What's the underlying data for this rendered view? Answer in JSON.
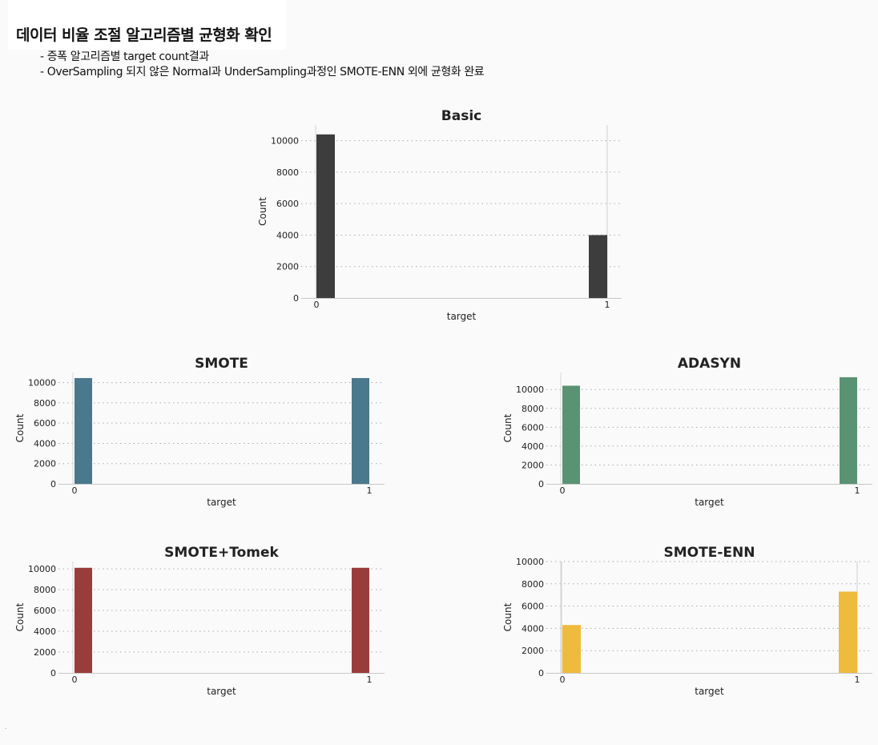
{
  "header": {
    "title": "데이터 비율 조절 알고리즘별 균형화 확인",
    "lines": [
      "- 증폭 알고리즘별 target count결과",
      "- OverSampling 되지 않은 Normal과 UnderSampling과정인 SMOTE-ENN 외에 균형화 완료"
    ]
  },
  "chart_data": [
    {
      "type": "bar",
      "title": "Basic",
      "xlabel": "target",
      "ylabel": "Count",
      "categories": [
        "0",
        "1"
      ],
      "values": [
        10400,
        4000
      ],
      "yticks": [
        0,
        2000,
        4000,
        6000,
        8000,
        10000
      ],
      "ylim": [
        0,
        11000
      ],
      "color": "#3d3d3d",
      "grid": true
    },
    {
      "type": "bar",
      "title": "SMOTE",
      "xlabel": "target",
      "ylabel": "Count",
      "categories": [
        "0",
        "1"
      ],
      "values": [
        10450,
        10450
      ],
      "yticks": [
        0,
        2000,
        4000,
        6000,
        8000,
        10000
      ],
      "ylim": [
        0,
        11000
      ],
      "color": "#4a788c",
      "grid": true
    },
    {
      "type": "bar",
      "title": "ADASYN",
      "xlabel": "target",
      "ylabel": "Count",
      "categories": [
        "0",
        "1"
      ],
      "values": [
        10400,
        11300
      ],
      "yticks": [
        0,
        2000,
        4000,
        6000,
        8000,
        10000
      ],
      "ylim": [
        0,
        11800
      ],
      "color": "#5a9373",
      "grid": true
    },
    {
      "type": "bar",
      "title": "SMOTE+Tomek",
      "xlabel": "target",
      "ylabel": "Count",
      "categories": [
        "0",
        "1"
      ],
      "values": [
        10100,
        10100
      ],
      "yticks": [
        0,
        2000,
        4000,
        6000,
        8000,
        10000
      ],
      "ylim": [
        0,
        10700
      ],
      "color": "#9b3c3c",
      "grid": true
    },
    {
      "type": "bar",
      "title": "SMOTE-ENN",
      "xlabel": "target",
      "ylabel": "Count",
      "categories": [
        "0",
        "1"
      ],
      "values": [
        4300,
        7300
      ],
      "yticks": [
        0,
        2000,
        4000,
        6000,
        8000,
        10000
      ],
      "ylim": [
        0,
        10000
      ],
      "color": "#efbb3c",
      "grid": true
    }
  ]
}
